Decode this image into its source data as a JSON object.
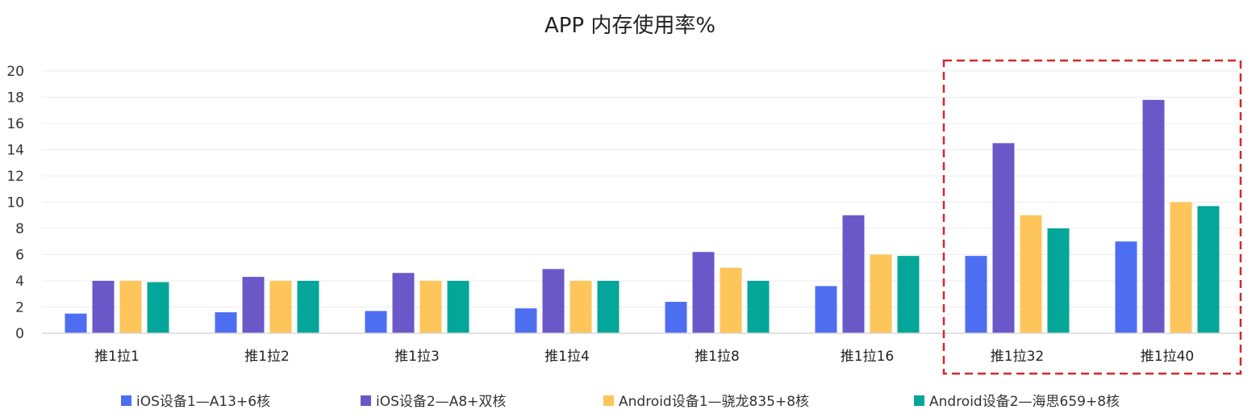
{
  "chart_data": {
    "type": "bar",
    "title": "APP 内存使用率%",
    "xlabel": "",
    "ylabel": "",
    "ylim": [
      0,
      20
    ],
    "yticks": [
      0,
      2,
      4,
      6,
      8,
      10,
      12,
      14,
      16,
      18,
      20
    ],
    "grid": true,
    "legend_position": "bottom",
    "categories": [
      "推1拉1",
      "推1拉2",
      "推1拉3",
      "推1拉4",
      "推1拉8",
      "推1拉16",
      "推1拉32",
      "推1拉40"
    ],
    "series": [
      {
        "name": "iOS设备1—A13+6核",
        "color": "#4e6ef2",
        "values": [
          1.5,
          1.6,
          1.7,
          1.9,
          2.4,
          3.6,
          5.9,
          7.0
        ]
      },
      {
        "name": "iOS设备2—A8+双核",
        "color": "#6a58c9",
        "values": [
          4.0,
          4.3,
          4.6,
          4.9,
          6.2,
          9.0,
          14.5,
          17.8
        ]
      },
      {
        "name": "Android设备1—骁龙835+8核",
        "color": "#fec55b",
        "values": [
          4.0,
          4.0,
          4.0,
          4.0,
          5.0,
          6.0,
          9.0,
          10.0
        ]
      },
      {
        "name": "Android设备2—海思659+8核",
        "color": "#05a69a",
        "values": [
          3.9,
          4.0,
          4.0,
          4.0,
          4.0,
          5.9,
          8.0,
          9.7
        ]
      }
    ],
    "annotations": [
      {
        "type": "dashed-highlight-box",
        "color": "#d62828",
        "covers_categories": [
          "推1拉32",
          "推1拉40"
        ]
      }
    ]
  }
}
